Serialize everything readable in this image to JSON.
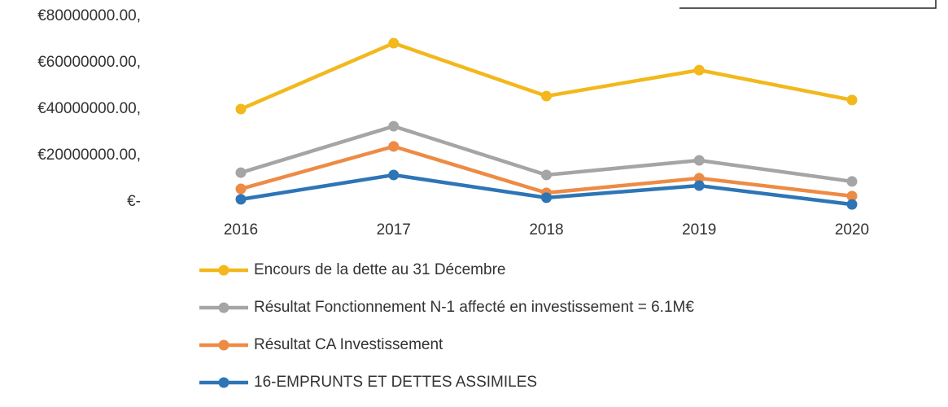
{
  "chart_data": {
    "type": "line",
    "categories": [
      "2016",
      "2017",
      "2018",
      "2019",
      "2020"
    ],
    "series": [
      {
        "name": "Encours de la dette au 31 Décembre",
        "color": "#f2b81c",
        "values": [
          40000000,
          68400000,
          45600000,
          56800000,
          43900000
        ]
      },
      {
        "name": "Résultat Fonctionnement N-1 affecté en investissement = 6.1M€",
        "color": "#a5a5a5",
        "values": [
          12600000,
          32600000,
          11600000,
          17900000,
          8800000
        ]
      },
      {
        "name": "Résultat CA  Investissement",
        "color": "#ed8b45",
        "values": [
          5600000,
          23900000,
          3900000,
          10200000,
          2500000
        ]
      },
      {
        "name": "16-EMPRUNTS ET DETTES ASSIMILES",
        "color": "#2e75b6",
        "values": [
          1100000,
          11600000,
          1800000,
          7000000,
          -1100000
        ]
      }
    ],
    "ylim": [
      0,
      80000000
    ],
    "yticks": [
      {
        "value": 0,
        "label": "€-"
      },
      {
        "value": 20000000,
        "label": "€20000000.00,"
      },
      {
        "value": 40000000,
        "label": "€40000000.00,"
      },
      {
        "value": 60000000,
        "label": "€60000000.00,"
      },
      {
        "value": 80000000,
        "label": "€80000000.00,"
      }
    ],
    "legend": "bottom"
  }
}
